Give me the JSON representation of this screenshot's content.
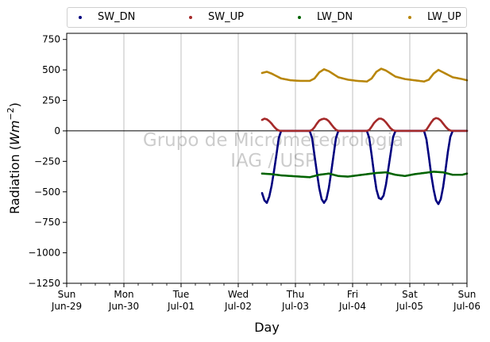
{
  "chart_data": {
    "type": "scatter",
    "title": "",
    "xlabel": "Day",
    "ylabel_prefix": "Radiation (",
    "ylabel_unit_base": "Wm",
    "ylabel_unit_exp": "−2",
    "ylabel_suffix": ")",
    "ylim": [
      -1250,
      800
    ],
    "yticks": [
      750,
      500,
      250,
      0,
      -250,
      -500,
      -750,
      -1000,
      -1250
    ],
    "ytick_labels": [
      "750",
      "500",
      "250",
      "0",
      "−250",
      "−500",
      "−750",
      "−1000",
      "−1250"
    ],
    "xlim": [
      "2025-06-29",
      "2025-07-06"
    ],
    "xticks": [
      {
        "day": "Sun",
        "date": "Jun-29"
      },
      {
        "day": "Mon",
        "date": "Jun-30"
      },
      {
        "day": "Tue",
        "date": "Jul-01"
      },
      {
        "day": "Wed",
        "date": "Jul-02"
      },
      {
        "day": "Thu",
        "date": "Jul-03"
      },
      {
        "day": "Fri",
        "date": "Jul-04"
      },
      {
        "day": "Sat",
        "date": "Jul-05"
      },
      {
        "day": "Sun",
        "date": "Jul-06"
      }
    ],
    "grid": "vertical",
    "zero_line": true,
    "legend_position": "top",
    "watermark": [
      "Grupo de Micrometeorologia",
      "IAG / USP"
    ],
    "series": [
      {
        "name": "SW_DN",
        "color": "#00007f",
        "x": [
          "2025-07-02T10:00",
          "2025-07-02T11:00",
          "2025-07-02T12:00",
          "2025-07-02T13:00",
          "2025-07-02T14:00",
          "2025-07-02T15:00",
          "2025-07-02T16:00",
          "2025-07-02T17:00",
          "2025-07-02T18:00",
          "2025-07-02T20:00",
          "2025-07-03T00:00",
          "2025-07-03T06:00",
          "2025-07-03T07:00",
          "2025-07-03T08:00",
          "2025-07-03T09:00",
          "2025-07-03T10:00",
          "2025-07-03T11:00",
          "2025-07-03T12:00",
          "2025-07-03T13:00",
          "2025-07-03T14:00",
          "2025-07-03T15:00",
          "2025-07-03T16:00",
          "2025-07-03T17:00",
          "2025-07-03T18:00",
          "2025-07-03T20:00",
          "2025-07-04T00:00",
          "2025-07-04T06:00",
          "2025-07-04T07:00",
          "2025-07-04T08:00",
          "2025-07-04T09:00",
          "2025-07-04T10:00",
          "2025-07-04T11:00",
          "2025-07-04T12:00",
          "2025-07-04T13:00",
          "2025-07-04T14:00",
          "2025-07-04T15:00",
          "2025-07-04T16:00",
          "2025-07-04T17:00",
          "2025-07-04T18:00",
          "2025-07-04T20:00",
          "2025-07-05T00:00",
          "2025-07-05T06:00",
          "2025-07-05T07:00",
          "2025-07-05T08:00",
          "2025-07-05T09:00",
          "2025-07-05T10:00",
          "2025-07-05T11:00",
          "2025-07-05T12:00",
          "2025-07-05T13:00",
          "2025-07-05T14:00",
          "2025-07-05T15:00",
          "2025-07-05T16:00",
          "2025-07-05T17:00",
          "2025-07-05T18:00",
          "2025-07-05T20:00",
          "2025-07-06T00:00"
        ],
        "y": [
          -510,
          -570,
          -590,
          -540,
          -450,
          -330,
          -200,
          -60,
          0,
          0,
          0,
          0,
          -60,
          -200,
          -340,
          -470,
          -560,
          -590,
          -560,
          -470,
          -340,
          -200,
          -60,
          0,
          0,
          0,
          0,
          -60,
          -200,
          -350,
          -480,
          -550,
          -560,
          -530,
          -440,
          -310,
          -180,
          -50,
          0,
          0,
          0,
          0,
          -70,
          -210,
          -360,
          -480,
          -570,
          -600,
          -560,
          -460,
          -320,
          -170,
          -50,
          0,
          0,
          0
        ]
      },
      {
        "name": "SW_UP",
        "color": "#a52a2a",
        "x": [
          "2025-07-02T10:00",
          "2025-07-02T11:00",
          "2025-07-02T12:00",
          "2025-07-02T13:00",
          "2025-07-02T14:00",
          "2025-07-02T15:00",
          "2025-07-02T16:00",
          "2025-07-02T17:00",
          "2025-07-02T18:00",
          "2025-07-02T20:00",
          "2025-07-03T00:00",
          "2025-07-03T06:00",
          "2025-07-03T07:00",
          "2025-07-03T08:00",
          "2025-07-03T09:00",
          "2025-07-03T10:00",
          "2025-07-03T11:00",
          "2025-07-03T12:00",
          "2025-07-03T13:00",
          "2025-07-03T14:00",
          "2025-07-03T15:00",
          "2025-07-03T16:00",
          "2025-07-03T17:00",
          "2025-07-03T18:00",
          "2025-07-03T20:00",
          "2025-07-04T00:00",
          "2025-07-04T06:00",
          "2025-07-04T07:00",
          "2025-07-04T08:00",
          "2025-07-04T09:00",
          "2025-07-04T10:00",
          "2025-07-04T11:00",
          "2025-07-04T12:00",
          "2025-07-04T13:00",
          "2025-07-04T14:00",
          "2025-07-04T15:00",
          "2025-07-04T16:00",
          "2025-07-04T17:00",
          "2025-07-04T18:00",
          "2025-07-04T20:00",
          "2025-07-05T00:00",
          "2025-07-05T06:00",
          "2025-07-05T07:00",
          "2025-07-05T08:00",
          "2025-07-05T09:00",
          "2025-07-05T10:00",
          "2025-07-05T11:00",
          "2025-07-05T12:00",
          "2025-07-05T13:00",
          "2025-07-05T14:00",
          "2025-07-05T15:00",
          "2025-07-05T16:00",
          "2025-07-05T17:00",
          "2025-07-05T18:00",
          "2025-07-05T20:00",
          "2025-07-06T00:00"
        ],
        "y": [
          90,
          100,
          95,
          80,
          60,
          35,
          15,
          3,
          0,
          0,
          0,
          0,
          8,
          30,
          60,
          85,
          95,
          100,
          95,
          80,
          55,
          30,
          10,
          0,
          0,
          0,
          0,
          8,
          35,
          65,
          85,
          100,
          100,
          90,
          70,
          45,
          20,
          5,
          0,
          0,
          0,
          0,
          10,
          40,
          70,
          95,
          105,
          100,
          85,
          60,
          35,
          15,
          3,
          0,
          0,
          0
        ]
      },
      {
        "name": "LW_DN",
        "color": "#006400",
        "x": [
          "2025-07-02T10:00",
          "2025-07-02T14:00",
          "2025-07-02T18:00",
          "2025-07-02T22:00",
          "2025-07-03T02:00",
          "2025-07-03T06:00",
          "2025-07-03T10:00",
          "2025-07-03T14:00",
          "2025-07-03T18:00",
          "2025-07-03T22:00",
          "2025-07-04T02:00",
          "2025-07-04T06:00",
          "2025-07-04T10:00",
          "2025-07-04T14:00",
          "2025-07-04T18:00",
          "2025-07-04T22:00",
          "2025-07-05T02:00",
          "2025-07-05T06:00",
          "2025-07-05T10:00",
          "2025-07-05T14:00",
          "2025-07-05T18:00",
          "2025-07-05T22:00",
          "2025-07-06T00:00"
        ],
        "y": [
          -350,
          -355,
          -365,
          -370,
          -375,
          -380,
          -360,
          -350,
          -370,
          -375,
          -365,
          -355,
          -345,
          -340,
          -360,
          -370,
          -355,
          -345,
          -335,
          -340,
          -360,
          -360,
          -350
        ]
      },
      {
        "name": "LW_UP",
        "color": "#b8860b",
        "x": [
          "2025-07-02T10:00",
          "2025-07-02T12:00",
          "2025-07-02T14:00",
          "2025-07-02T18:00",
          "2025-07-02T22:00",
          "2025-07-03T02:00",
          "2025-07-03T06:00",
          "2025-07-03T08:00",
          "2025-07-03T10:00",
          "2025-07-03T12:00",
          "2025-07-03T14:00",
          "2025-07-03T18:00",
          "2025-07-03T22:00",
          "2025-07-04T02:00",
          "2025-07-04T06:00",
          "2025-07-04T08:00",
          "2025-07-04T10:00",
          "2025-07-04T12:00",
          "2025-07-04T14:00",
          "2025-07-04T18:00",
          "2025-07-04T22:00",
          "2025-07-05T02:00",
          "2025-07-05T06:00",
          "2025-07-05T08:00",
          "2025-07-05T10:00",
          "2025-07-05T12:00",
          "2025-07-05T14:00",
          "2025-07-05T18:00",
          "2025-07-05T22:00",
          "2025-07-06T00:00"
        ],
        "y": [
          475,
          485,
          470,
          430,
          415,
          410,
          410,
          430,
          480,
          505,
          490,
          440,
          420,
          410,
          405,
          430,
          485,
          510,
          495,
          445,
          425,
          415,
          405,
          420,
          470,
          500,
          480,
          440,
          425,
          415
        ]
      }
    ]
  }
}
